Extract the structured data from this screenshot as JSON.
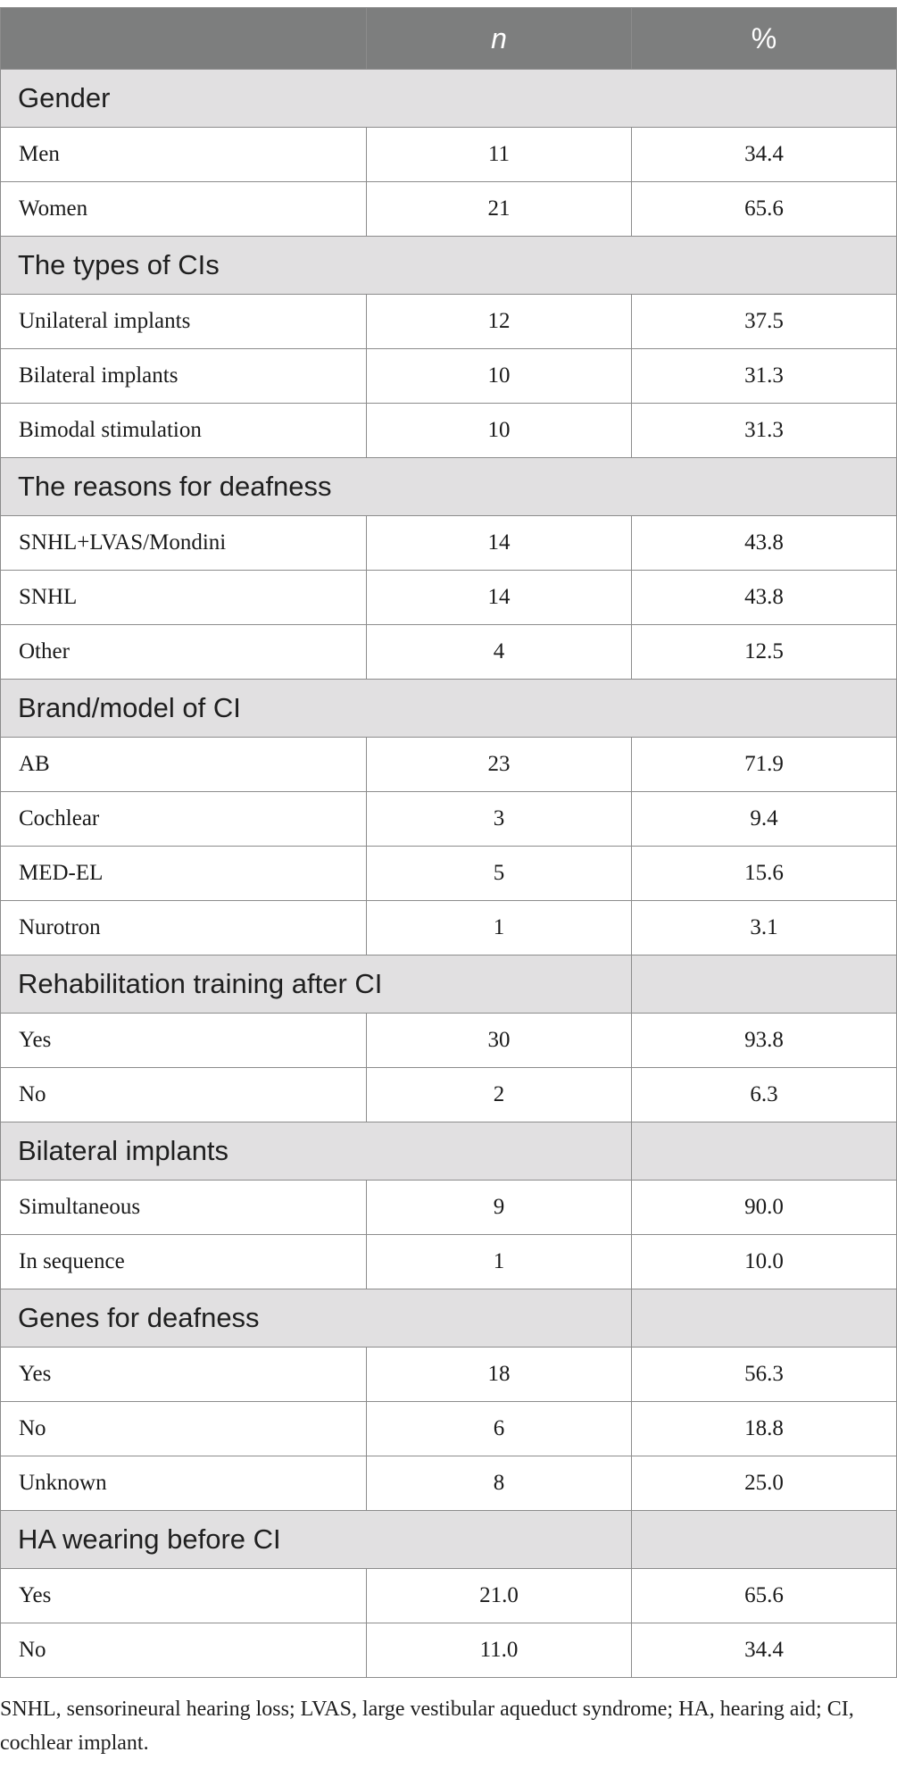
{
  "table": {
    "header": {
      "label": "",
      "n": "n",
      "percent": "%"
    },
    "sections": [
      {
        "title": "Gender",
        "merged": true,
        "rows": [
          {
            "label": "Men",
            "n": "11",
            "percent": "34.4"
          },
          {
            "label": "Women",
            "n": "21",
            "percent": "65.6"
          }
        ]
      },
      {
        "title": "The types of CIs",
        "merged": true,
        "rows": [
          {
            "label": "Unilateral implants",
            "n": "12",
            "percent": "37.5"
          },
          {
            "label": "Bilateral implants",
            "n": "10",
            "percent": "31.3"
          },
          {
            "label": "Bimodal stimulation",
            "n": "10",
            "percent": "31.3"
          }
        ]
      },
      {
        "title": "The reasons for deafness",
        "merged": true,
        "rows": [
          {
            "label": "SNHL+LVAS/Mondini",
            "n": "14",
            "percent": "43.8"
          },
          {
            "label": "SNHL",
            "n": "14",
            "percent": "43.8"
          },
          {
            "label": "Other",
            "n": "4",
            "percent": "12.5"
          }
        ]
      },
      {
        "title": "Brand/model of CI",
        "merged": true,
        "rows": [
          {
            "label": "AB",
            "n": "23",
            "percent": "71.9"
          },
          {
            "label": "Cochlear",
            "n": "3",
            "percent": "9.4"
          },
          {
            "label": "MED-EL",
            "n": "5",
            "percent": "15.6"
          },
          {
            "label": "Nurotron",
            "n": "1",
            "percent": "3.1"
          }
        ]
      },
      {
        "title": "Rehabilitation training after CI",
        "merged": false,
        "rows": [
          {
            "label": "Yes",
            "n": "30",
            "percent": "93.8"
          },
          {
            "label": "No",
            "n": "2",
            "percent": "6.3"
          }
        ]
      },
      {
        "title": "Bilateral implants",
        "merged": false,
        "rows": [
          {
            "label": "Simultaneous",
            "n": "9",
            "percent": "90.0"
          },
          {
            "label": "In sequence",
            "n": "1",
            "percent": "10.0"
          }
        ]
      },
      {
        "title": "Genes for deafness",
        "merged": false,
        "rows": [
          {
            "label": "Yes",
            "n": "18",
            "percent": "56.3"
          },
          {
            "label": "No",
            "n": "6",
            "percent": "18.8"
          },
          {
            "label": "Unknown",
            "n": "8",
            "percent": "25.0"
          }
        ]
      },
      {
        "title": "HA wearing before CI",
        "merged": false,
        "rows": [
          {
            "label": "Yes",
            "n": "21.0",
            "percent": "65.6"
          },
          {
            "label": "No",
            "n": "11.0",
            "percent": "34.4"
          }
        ]
      }
    ]
  },
  "footnote": "SNHL, sensorineural hearing loss; LVAS, large vestibular aqueduct syndrome; HA, hearing aid; CI, cochlear implant.",
  "colors": {
    "header_bg": "#7d7e7e",
    "section_bg": "#e1e0e1",
    "border": "#8c8c8c"
  }
}
